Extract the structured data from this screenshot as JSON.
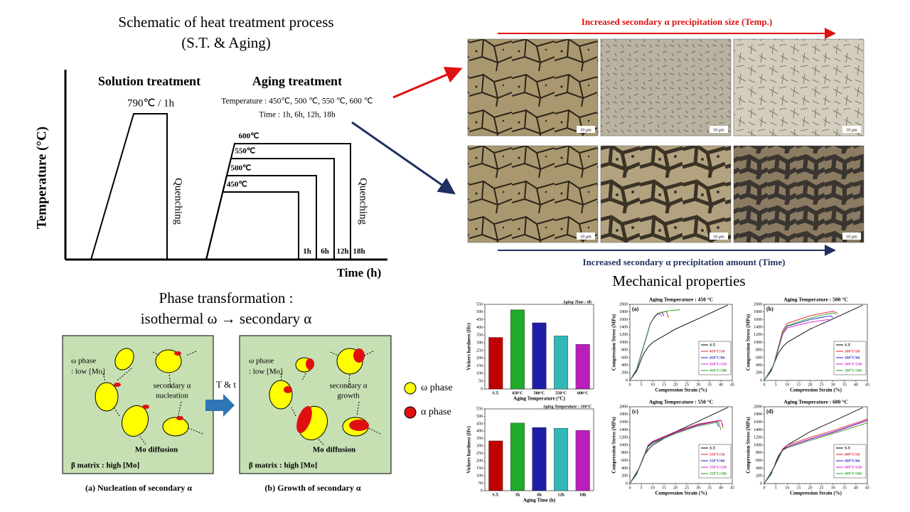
{
  "schematic": {
    "title": [
      "Schematic of heat treatment process",
      "(S.T. & Aging)"
    ],
    "y_label": "Temperature  (°C)",
    "x_label": "Time  (h)",
    "solution_title": "Solution  treatment",
    "solution_condition": "790℃ / 1h",
    "quenching": "Quenching",
    "aging_title": "Aging  treatment",
    "aging_temperature": "Temperature : 450℃, 500 ℃, 550 ℃, 600 ℃",
    "aging_time": "Time : 1h, 6h, 12h, 18h",
    "levels": [
      "450℃",
      "500℃",
      "550℃",
      "600℃"
    ],
    "times": [
      "1h",
      "6h",
      "12h",
      "18h"
    ]
  },
  "micrographs": {
    "top_caption": "Increased secondary  α precipitation  size (Temp.)",
    "bottom_caption": "Increased secondary  α precipitation   amount  (Time)",
    "scale_bar": "10 μm"
  },
  "phase": {
    "title": [
      "Phase transformation :",
      "isothermal ω → secondary α"
    ],
    "omega": "ω phase",
    "low_mo": ": low [Mo]",
    "secondary": "secondary α",
    "nucleation": "nucleation",
    "growth": "growth",
    "diffusion": "Mo diffusion",
    "matrix": "β  matrix : high [Mo]",
    "arrow": "T  &  t",
    "caption_a": "(a) Nucleation of secondary α",
    "caption_b": "(b) Growth of secondary α",
    "legend_omega": "ω phase",
    "legend_alpha": "α phase"
  },
  "mechanical_title": "Mechanical properties",
  "chart_data": [
    {
      "type": "bar",
      "title": "Aging Time : 6h",
      "x_label": "Aging Temperature (°C)",
      "y_label": "Vickers hardness (Hv)",
      "categories": [
        "S.T.",
        "450°C",
        "500°C",
        "550°C",
        "600°C"
      ],
      "values": [
        335,
        515,
        430,
        345,
        290
      ],
      "colors": [
        "#c00000",
        "#1faa2a",
        "#1f1fa5",
        "#33b8b8",
        "#b81fb8"
      ],
      "ylim": [
        0,
        550
      ],
      "yticks": [
        0,
        50,
        100,
        150,
        200,
        250,
        300,
        350,
        400,
        450,
        500,
        550
      ]
    },
    {
      "type": "bar",
      "title": "Aging Temperature : 500°C",
      "x_label": "Aging Time (h)",
      "y_label": "Vickers hardness (Hv)",
      "categories": [
        "S.T.",
        "1h",
        "6h",
        "12h",
        "18h"
      ],
      "values": [
        335,
        455,
        425,
        420,
        405
      ],
      "colors": [
        "#c00000",
        "#1faa2a",
        "#1f1fa5",
        "#33b8b8",
        "#b81fb8"
      ],
      "ylim": [
        0,
        550
      ],
      "yticks": [
        0,
        50,
        100,
        150,
        200,
        250,
        300,
        350,
        400,
        450,
        500,
        550
      ]
    },
    {
      "type": "line",
      "title": "Aging Temperature : 450 °C",
      "panel": "(a)",
      "x_label": "Compression Strain (%)",
      "y_label": "Compression Stress (MPa)",
      "xlim": [
        0,
        45
      ],
      "xticks": [
        0,
        5,
        10,
        15,
        20,
        25,
        30,
        35,
        40,
        45
      ],
      "ylim": [
        0,
        2000
      ],
      "yticks": [
        0,
        200,
        400,
        600,
        800,
        1000,
        1200,
        1400,
        1600,
        1800,
        2000
      ],
      "series": [
        {
          "name": "S.T.",
          "color": "#000000",
          "x": [
            0,
            3,
            6,
            8,
            10,
            20,
            30,
            43
          ],
          "values": [
            0,
            250,
            700,
            880,
            1000,
            1350,
            1620,
            1980
          ]
        },
        {
          "name": "450°C/1h",
          "color": "#e02020",
          "x": [
            0,
            3,
            6,
            9,
            12,
            16,
            17
          ],
          "values": [
            0,
            300,
            900,
            1500,
            1750,
            1820,
            1650
          ]
        },
        {
          "name": "450°C/6h",
          "color": "#2020c0",
          "x": [
            0,
            3,
            6,
            9,
            11,
            14,
            15
          ],
          "values": [
            0,
            300,
            900,
            1500,
            1700,
            1800,
            1700
          ]
        },
        {
          "name": "450°C/12h",
          "color": "#d020d0",
          "x": [
            0,
            3,
            6,
            9,
            11,
            13,
            14
          ],
          "values": [
            0,
            280,
            880,
            1480,
            1690,
            1760,
            1680
          ]
        },
        {
          "name": "450°C/18h",
          "color": "#20a020",
          "x": [
            0,
            3,
            6,
            9,
            12,
            17,
            22
          ],
          "values": [
            0,
            290,
            890,
            1500,
            1760,
            1830,
            1860
          ]
        }
      ]
    },
    {
      "type": "line",
      "title": "Aging Temperature : 500 °C",
      "panel": "(b)",
      "x_label": "Compression Strain (%)",
      "y_label": "Compression Stress (MPa)",
      "xlim": [
        0,
        45
      ],
      "xticks": [
        0,
        5,
        10,
        15,
        20,
        25,
        30,
        35,
        40,
        45
      ],
      "ylim": [
        0,
        2000
      ],
      "yticks": [
        0,
        200,
        400,
        600,
        800,
        1000,
        1200,
        1400,
        1600,
        1800,
        2000
      ],
      "series": [
        {
          "name": "S.T.",
          "color": "#000000",
          "x": [
            0,
            3,
            6,
            8,
            10,
            20,
            30,
            43
          ],
          "values": [
            0,
            250,
            700,
            880,
            1000,
            1350,
            1620,
            1980
          ]
        },
        {
          "name": "500°C/1h",
          "color": "#e02020",
          "x": [
            0,
            4,
            8,
            10,
            20,
            30,
            32
          ],
          "values": [
            0,
            400,
            1300,
            1500,
            1700,
            1820,
            1760
          ]
        },
        {
          "name": "500°C/6h",
          "color": "#2020c0",
          "x": [
            0,
            4,
            8,
            10,
            20,
            29,
            30
          ],
          "values": [
            0,
            400,
            1250,
            1420,
            1600,
            1700,
            1650
          ]
        },
        {
          "name": "500°C/12h",
          "color": "#d020d0",
          "x": [
            0,
            4,
            8,
            10,
            20,
            28,
            29
          ],
          "values": [
            0,
            380,
            1200,
            1380,
            1530,
            1600,
            1560
          ]
        },
        {
          "name": "500°C/18h",
          "color": "#20a020",
          "x": [
            0,
            4,
            8,
            10,
            20,
            30,
            31
          ],
          "values": [
            0,
            390,
            1260,
            1440,
            1640,
            1780,
            1740
          ]
        }
      ]
    },
    {
      "type": "line",
      "title": "Aging Temperature : 550 °C",
      "panel": "(c)",
      "x_label": "Compression Strain (%)",
      "y_label": "Compression Stress (MPa)",
      "xlim": [
        0,
        45
      ],
      "xticks": [
        0,
        5,
        10,
        15,
        20,
        25,
        30,
        35,
        40,
        45
      ],
      "ylim": [
        0,
        2000
      ],
      "yticks": [
        0,
        200,
        400,
        600,
        800,
        1000,
        1200,
        1400,
        1600,
        1800,
        2000
      ],
      "series": [
        {
          "name": "S.T.",
          "color": "#000000",
          "x": [
            0,
            3,
            6,
            8,
            10,
            20,
            30,
            43
          ],
          "values": [
            0,
            250,
            700,
            880,
            1000,
            1350,
            1620,
            1980
          ]
        },
        {
          "name": "550°C/1h",
          "color": "#e02020",
          "x": [
            0,
            4,
            8,
            10,
            20,
            30,
            40,
            41
          ],
          "values": [
            0,
            400,
            1000,
            1100,
            1350,
            1550,
            1650,
            1450
          ]
        },
        {
          "name": "550°C/6h",
          "color": "#2020c0",
          "x": [
            0,
            4,
            8,
            10,
            20,
            30,
            38,
            39
          ],
          "values": [
            0,
            400,
            980,
            1080,
            1330,
            1530,
            1620,
            1480
          ]
        },
        {
          "name": "550°C/12h",
          "color": "#d020d0",
          "x": [
            0,
            4,
            8,
            10,
            20,
            30,
            40,
            41
          ],
          "values": [
            0,
            390,
            960,
            1060,
            1320,
            1520,
            1640,
            1500
          ]
        },
        {
          "name": "550°C/18h",
          "color": "#20a020",
          "x": [
            0,
            4,
            8,
            10,
            20,
            30,
            39,
            40
          ],
          "values": [
            0,
            380,
            950,
            1050,
            1300,
            1500,
            1600,
            1400
          ]
        }
      ]
    },
    {
      "type": "line",
      "title": "Aging Temperature : 600 °C",
      "panel": "(d)",
      "x_label": "Compression Strain (%)",
      "y_label": "Compression Stress (MPa)",
      "xlim": [
        0,
        45
      ],
      "xticks": [
        0,
        5,
        10,
        15,
        20,
        25,
        30,
        35,
        40,
        45
      ],
      "ylim": [
        0,
        2000
      ],
      "yticks": [
        0,
        200,
        400,
        600,
        800,
        1000,
        1200,
        1400,
        1600,
        1800,
        2000
      ],
      "series": [
        {
          "name": "S.T.",
          "color": "#000000",
          "x": [
            0,
            3,
            6,
            8,
            10,
            20,
            30,
            43
          ],
          "values": [
            0,
            250,
            700,
            880,
            1000,
            1350,
            1620,
            1980
          ]
        },
        {
          "name": "600°C/1h",
          "color": "#e02020",
          "x": [
            0,
            4,
            8,
            10,
            20,
            30,
            45
          ],
          "values": [
            0,
            400,
            900,
            1000,
            1200,
            1380,
            1680
          ]
        },
        {
          "name": "600°C/6h",
          "color": "#2020c0",
          "x": [
            0,
            4,
            8,
            10,
            20,
            30,
            45
          ],
          "values": [
            0,
            400,
            880,
            960,
            1160,
            1340,
            1650
          ]
        },
        {
          "name": "600°C/12h",
          "color": "#d020d0",
          "x": [
            0,
            4,
            8,
            10,
            20,
            30,
            45
          ],
          "values": [
            0,
            390,
            870,
            950,
            1150,
            1330,
            1640
          ]
        },
        {
          "name": "600°C/18h",
          "color": "#20a020",
          "x": [
            0,
            4,
            8,
            10,
            20,
            30,
            45
          ],
          "values": [
            0,
            380,
            860,
            930,
            1120,
            1300,
            1580
          ]
        }
      ]
    }
  ]
}
